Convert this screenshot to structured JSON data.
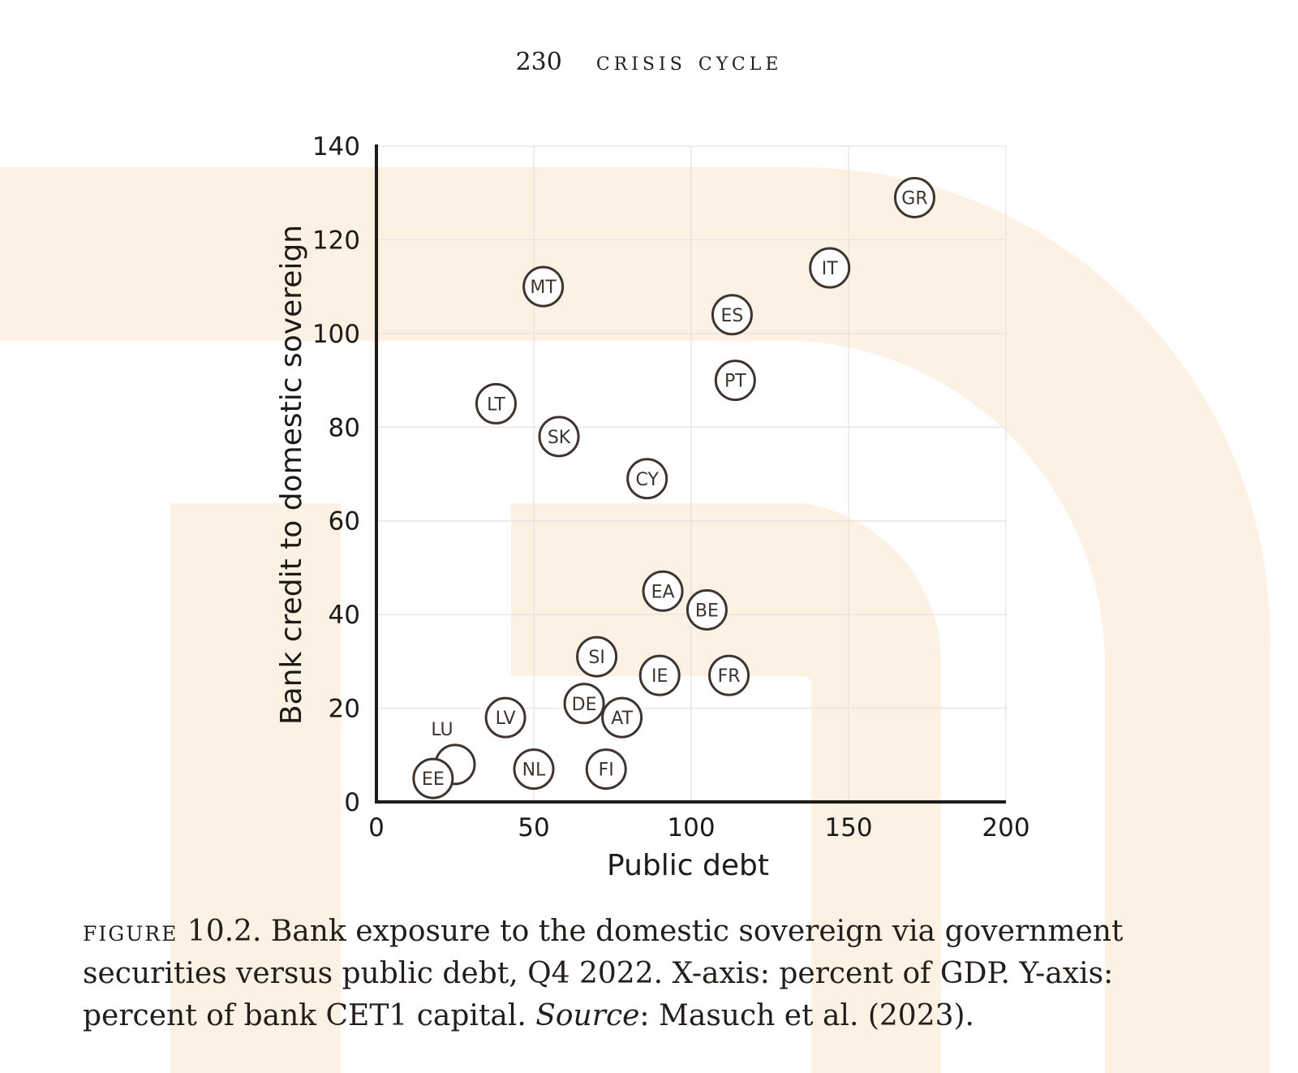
{
  "header": {
    "page_number": "230",
    "book_title": "CRISIS CYCLE"
  },
  "watermark": {
    "color": "#fdf1e3",
    "icon": "large-d-logo-icon"
  },
  "colors": {
    "marker": "#3d3430",
    "grid": "#e3e3e3",
    "axis": "#1d1a18",
    "text": "#1d1a18"
  },
  "chart_data": {
    "type": "scatter",
    "xlabel": "Public debt",
    "ylabel": "Bank credit to domestic sovereign",
    "xlim": [
      0,
      200
    ],
    "ylim": [
      0,
      140
    ],
    "xticks": [
      0,
      50,
      100,
      150,
      200
    ],
    "yticks": [
      0,
      20,
      40,
      60,
      80,
      100,
      120,
      140
    ],
    "grid": true,
    "points": [
      {
        "label": "GR",
        "x": 171,
        "y": 129
      },
      {
        "label": "IT",
        "x": 144,
        "y": 114
      },
      {
        "label": "MT",
        "x": 53,
        "y": 110
      },
      {
        "label": "ES",
        "x": 113,
        "y": 104
      },
      {
        "label": "PT",
        "x": 114,
        "y": 90
      },
      {
        "label": "LT",
        "x": 38,
        "y": 85
      },
      {
        "label": "SK",
        "x": 58,
        "y": 78
      },
      {
        "label": "CY",
        "x": 86,
        "y": 69
      },
      {
        "label": "EA",
        "x": 91,
        "y": 45
      },
      {
        "label": "BE",
        "x": 105,
        "y": 41
      },
      {
        "label": "SI",
        "x": 70,
        "y": 31
      },
      {
        "label": "IE",
        "x": 90,
        "y": 27
      },
      {
        "label": "FR",
        "x": 112,
        "y": 27
      },
      {
        "label": "DE",
        "x": 66,
        "y": 21
      },
      {
        "label": "AT",
        "x": 78,
        "y": 18
      },
      {
        "label": "LV",
        "x": 41,
        "y": 18
      },
      {
        "label": "LU",
        "x": 25,
        "y": 8
      },
      {
        "label": "EE",
        "x": 18,
        "y": 5
      },
      {
        "label": "NL",
        "x": 50,
        "y": 7
      },
      {
        "label": "FI",
        "x": 73,
        "y": 7
      }
    ]
  },
  "caption": {
    "figure_label": "FIGURE",
    "figure_text": " 10.2. Bank exposure to the domestic sovereign via government securities versus public debt, Q4 2022. X-axis: percent of GDP. Y-axis: percent of bank CET1 capital. ",
    "source_label": "Source",
    "source_text": ": Masuch et al. (2023)."
  }
}
